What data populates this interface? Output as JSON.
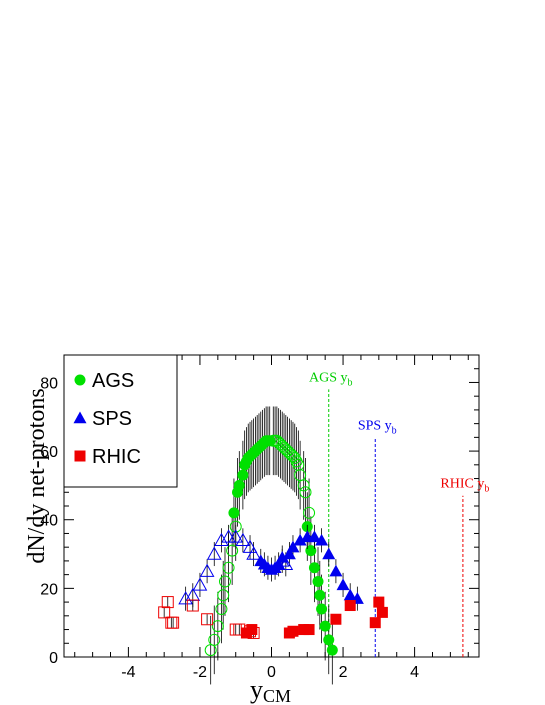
{
  "chart_data": {
    "type": "scatter",
    "xlabel": "y",
    "xlabel_sub": "CM",
    "ylabel": "dN/dy net-protons",
    "xlim": [
      -5.8,
      5.8
    ],
    "ylim": [
      0,
      88
    ],
    "x_ticks": [
      -4,
      -2,
      0,
      2,
      4
    ],
    "y_ticks": [
      0,
      20,
      40,
      60,
      80
    ],
    "legend_position": "top-left",
    "grid": false,
    "series": [
      {
        "name": "AGS",
        "color": "#00e000",
        "marker": "circle",
        "measured": [
          [
            -1.05,
            42
          ],
          [
            -0.95,
            48
          ],
          [
            -0.9,
            50
          ],
          [
            -0.8,
            53
          ],
          [
            -0.75,
            56
          ],
          [
            -0.7,
            57
          ],
          [
            -0.65,
            58
          ],
          [
            -0.6,
            58.5
          ],
          [
            -0.55,
            59
          ],
          [
            -0.5,
            59.5
          ],
          [
            -0.45,
            60
          ],
          [
            -0.4,
            60.5
          ],
          [
            -0.35,
            61
          ],
          [
            -0.3,
            61.5
          ],
          [
            -0.25,
            62
          ],
          [
            -0.2,
            62.5
          ],
          [
            -0.15,
            63
          ],
          [
            -0.1,
            63
          ],
          [
            -0.05,
            63
          ],
          [
            1.0,
            38
          ],
          [
            1.1,
            31
          ],
          [
            1.2,
            26
          ],
          [
            1.3,
            22
          ],
          [
            1.35,
            18
          ],
          [
            1.4,
            14
          ],
          [
            1.5,
            9
          ],
          [
            1.6,
            5
          ],
          [
            1.7,
            2
          ]
        ],
        "reflected": [
          [
            0.05,
            63
          ],
          [
            0.1,
            63
          ],
          [
            0.15,
            63
          ],
          [
            0.2,
            62.5
          ],
          [
            0.25,
            62
          ],
          [
            0.3,
            61.5
          ],
          [
            0.35,
            61
          ],
          [
            0.4,
            60.5
          ],
          [
            0.45,
            60
          ],
          [
            0.5,
            59.5
          ],
          [
            0.55,
            59
          ],
          [
            0.6,
            58.5
          ],
          [
            0.65,
            58
          ],
          [
            0.7,
            57
          ],
          [
            0.75,
            56
          ],
          [
            0.8,
            53
          ],
          [
            0.9,
            50
          ],
          [
            0.95,
            48
          ],
          [
            1.05,
            42
          ],
          [
            -1.0,
            38
          ],
          [
            -1.1,
            31
          ],
          [
            -1.2,
            26
          ],
          [
            -1.3,
            22
          ],
          [
            -1.35,
            18
          ],
          [
            -1.4,
            14
          ],
          [
            -1.5,
            9
          ],
          [
            -1.6,
            5
          ],
          [
            -1.7,
            2
          ]
        ],
        "error": 10
      },
      {
        "name": "SPS",
        "color": "#0000ee",
        "marker": "triangle",
        "measured": [
          [
            -0.3,
            28
          ],
          [
            -0.2,
            27
          ],
          [
            -0.1,
            26
          ],
          [
            0.0,
            25.5
          ],
          [
            0.1,
            26
          ],
          [
            0.2,
            27
          ],
          [
            0.3,
            29
          ],
          [
            0.5,
            30
          ],
          [
            0.6,
            32
          ],
          [
            0.8,
            34
          ],
          [
            1.0,
            35
          ],
          [
            1.2,
            35
          ],
          [
            1.4,
            34
          ],
          [
            1.6,
            30
          ],
          [
            1.8,
            25
          ],
          [
            2.0,
            21
          ],
          [
            2.2,
            18
          ],
          [
            2.4,
            17
          ]
        ],
        "reflected": [
          [
            -2.4,
            17
          ],
          [
            -2.2,
            18
          ],
          [
            -2.0,
            21
          ],
          [
            -1.8,
            25
          ],
          [
            -1.6,
            30
          ],
          [
            -1.4,
            34
          ],
          [
            -1.2,
            35
          ],
          [
            -1.0,
            35
          ],
          [
            -0.8,
            34
          ],
          [
            -0.6,
            32
          ],
          [
            -0.5,
            30
          ],
          [
            0.3,
            28
          ],
          [
            0.4,
            27
          ]
        ],
        "error": 3.5
      },
      {
        "name": "RHIC",
        "color": "#ee0000",
        "marker": "square",
        "measured": [
          [
            -0.7,
            7
          ],
          [
            -0.55,
            8
          ],
          [
            0.5,
            7
          ],
          [
            0.6,
            7.5
          ],
          [
            0.9,
            8
          ],
          [
            1.05,
            8
          ],
          [
            1.8,
            11
          ],
          [
            2.2,
            15
          ],
          [
            2.9,
            10
          ],
          [
            3.0,
            16
          ],
          [
            3.1,
            13
          ]
        ],
        "reflected": [
          [
            -3.0,
            13
          ],
          [
            -2.9,
            16
          ],
          [
            -2.8,
            10
          ],
          [
            -2.75,
            10
          ],
          [
            -2.2,
            15
          ],
          [
            -1.8,
            11
          ],
          [
            -1.0,
            8
          ],
          [
            -0.9,
            8
          ],
          [
            -0.6,
            7.5
          ],
          [
            -0.5,
            7
          ]
        ],
        "error": 1.5
      }
    ],
    "beam_rapidities": [
      {
        "label": "AGS y",
        "sub": "b",
        "x": 1.6,
        "color": "#00cc00",
        "top": 78
      },
      {
        "label": "SPS y",
        "sub": "b",
        "x": 2.9,
        "color": "#0000ee",
        "top": 64
      },
      {
        "label": "RHIC y",
        "sub": "b",
        "x": 5.35,
        "color": "#ee0000",
        "top": 47
      }
    ]
  }
}
